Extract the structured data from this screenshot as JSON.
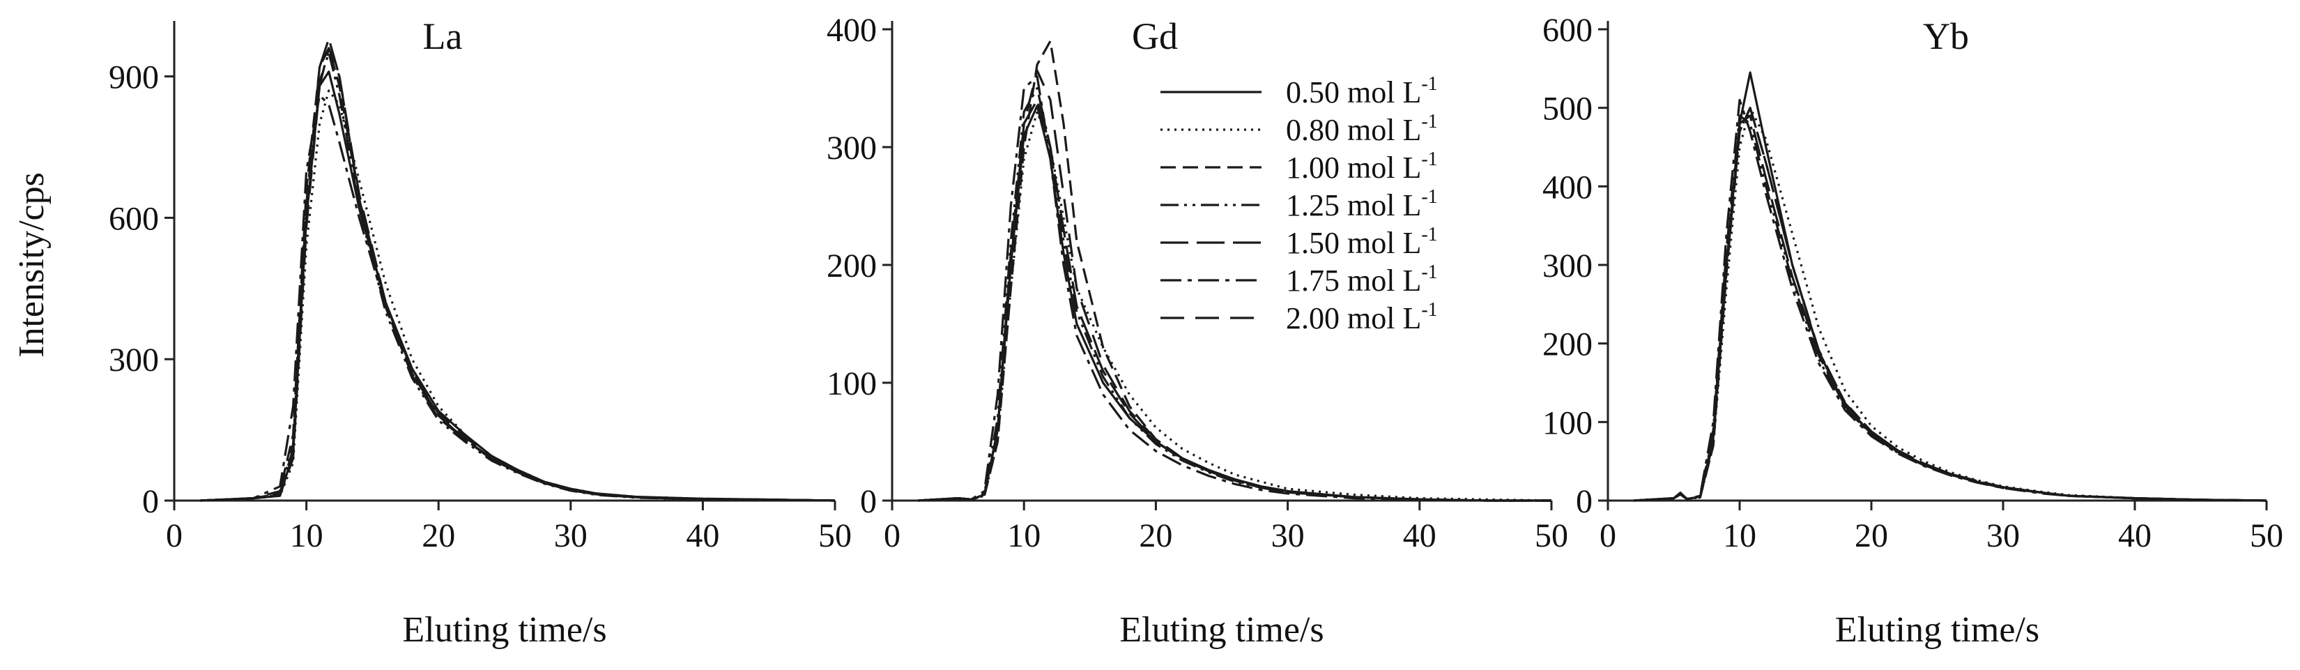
{
  "chart_data": [
    {
      "type": "line",
      "title": "La",
      "xlabel": "Eluting time/s",
      "ylabel": "Intensity/cps",
      "xlim": [
        0,
        50
      ],
      "ylim": [
        0,
        1000
      ],
      "xticks": [
        0,
        10,
        20,
        30,
        40,
        50
      ],
      "yticks": [
        0,
        300,
        600,
        900
      ],
      "x": [
        2,
        6,
        8,
        9,
        10,
        11,
        11.7,
        12.5,
        14,
        16,
        18,
        20,
        22,
        24,
        26,
        28,
        30,
        32,
        35,
        40,
        45,
        50
      ],
      "series": [
        {
          "name": "0.50 mol L-1",
          "values": [
            0,
            5,
            10,
            100,
            600,
            880,
            910,
            820,
            620,
            420,
            280,
            190,
            140,
            95,
            65,
            40,
            25,
            15,
            8,
            4,
            2,
            0
          ]
        },
        {
          "name": "0.80 mol L-1",
          "values": [
            0,
            5,
            10,
            80,
            540,
            800,
            870,
            840,
            680,
            460,
            300,
            200,
            140,
            95,
            65,
            40,
            25,
            15,
            8,
            4,
            2,
            0
          ]
        },
        {
          "name": "1.00 mol L-1",
          "values": [
            0,
            5,
            20,
            140,
            660,
            920,
            960,
            880,
            640,
            420,
            270,
            180,
            130,
            90,
            60,
            38,
            22,
            13,
            7,
            3,
            2,
            0
          ]
        },
        {
          "name": "1.25 mol L-1",
          "values": [
            0,
            5,
            15,
            120,
            620,
            890,
            950,
            860,
            620,
            400,
            260,
            170,
            125,
            85,
            58,
            36,
            21,
            12,
            6,
            3,
            1,
            0
          ]
        },
        {
          "name": "1.50 mol L-1",
          "values": [
            0,
            5,
            15,
            110,
            630,
            920,
            980,
            900,
            640,
            410,
            265,
            175,
            130,
            88,
            60,
            37,
            22,
            13,
            7,
            3,
            2,
            0
          ]
        },
        {
          "name": "1.75 mol L-1",
          "values": [
            0,
            5,
            30,
            200,
            700,
            860,
            840,
            760,
            600,
            410,
            270,
            180,
            130,
            90,
            60,
            38,
            22,
            13,
            7,
            3,
            2,
            0
          ]
        },
        {
          "name": "2.00 mol L-1",
          "values": [
            0,
            5,
            12,
            90,
            580,
            880,
            960,
            900,
            650,
            420,
            275,
            185,
            135,
            92,
            62,
            39,
            23,
            14,
            7,
            3,
            2,
            0
          ]
        }
      ]
    },
    {
      "type": "line",
      "title": "Gd",
      "xlabel": "Eluting time/s",
      "ylabel": "",
      "xlim": [
        0,
        50
      ],
      "ylim": [
        0,
        400
      ],
      "xticks": [
        0,
        10,
        20,
        30,
        40,
        50
      ],
      "yticks": [
        0,
        100,
        200,
        300,
        400
      ],
      "x": [
        2,
        5,
        6,
        7,
        8,
        9,
        10,
        11,
        12,
        13,
        14,
        16,
        18,
        20,
        22,
        24,
        26,
        28,
        30,
        35,
        40,
        45,
        50
      ],
      "series": [
        {
          "name": "0.50 mol L-1",
          "values": [
            0,
            2,
            1,
            5,
            60,
            200,
            310,
            335,
            290,
            210,
            150,
            100,
            70,
            50,
            36,
            26,
            18,
            12,
            8,
            3,
            1,
            0,
            0
          ]
        },
        {
          "name": "0.80 mol L-1",
          "values": [
            0,
            2,
            1,
            4,
            50,
            180,
            290,
            330,
            300,
            240,
            180,
            130,
            90,
            62,
            44,
            32,
            22,
            16,
            10,
            5,
            2,
            1,
            0
          ]
        },
        {
          "name": "1.00 mol L-1",
          "values": [
            0,
            2,
            1,
            4,
            50,
            180,
            300,
            370,
            390,
            320,
            220,
            130,
            80,
            52,
            36,
            25,
            17,
            11,
            7,
            3,
            1,
            0,
            0
          ]
        },
        {
          "name": "1.25 mol L-1",
          "values": [
            0,
            2,
            1,
            6,
            70,
            220,
            330,
            350,
            300,
            220,
            160,
            105,
            70,
            48,
            34,
            24,
            16,
            11,
            7,
            3,
            1,
            0,
            0
          ]
        },
        {
          "name": "1.50 mol L-1",
          "values": [
            0,
            2,
            1,
            5,
            60,
            210,
            320,
            340,
            300,
            230,
            165,
            110,
            74,
            50,
            35,
            25,
            17,
            11,
            7,
            3,
            1,
            0,
            0
          ]
        },
        {
          "name": "1.75 mol L-1",
          "values": [
            0,
            2,
            1,
            8,
            90,
            250,
            350,
            360,
            290,
            200,
            140,
            90,
            60,
            42,
            30,
            21,
            14,
            9,
            6,
            2,
            1,
            0,
            0
          ]
        },
        {
          "name": "2.00 mol L-1",
          "values": [
            0,
            2,
            1,
            5,
            60,
            200,
            320,
            365,
            340,
            260,
            180,
            115,
            76,
            52,
            36,
            26,
            18,
            12,
            8,
            3,
            1,
            0,
            0
          ]
        }
      ]
    },
    {
      "type": "line",
      "title": "Yb",
      "xlabel": "Eluting time/s",
      "ylabel": "",
      "xlim": [
        0,
        50
      ],
      "ylim": [
        0,
        600
      ],
      "xticks": [
        0,
        10,
        20,
        30,
        40,
        50
      ],
      "yticks": [
        0,
        100,
        200,
        300,
        400,
        500,
        600
      ],
      "x": [
        2,
        5,
        5.5,
        6,
        7,
        8,
        9,
        10,
        10.8,
        12,
        14,
        16,
        18,
        20,
        22,
        24,
        26,
        28,
        30,
        33,
        35,
        40,
        45,
        50
      ],
      "series": [
        {
          "name": "0.50 mol L-1",
          "values": [
            0,
            3,
            10,
            2,
            5,
            80,
            300,
            480,
            545,
            450,
            300,
            190,
            120,
            85,
            62,
            45,
            33,
            24,
            17,
            10,
            6,
            3,
            1,
            0
          ]
        },
        {
          "name": "0.80 mol L-1",
          "values": [
            0,
            3,
            8,
            2,
            4,
            70,
            270,
            450,
            500,
            460,
            340,
            220,
            140,
            95,
            68,
            50,
            36,
            26,
            18,
            11,
            7,
            3,
            1,
            0
          ]
        },
        {
          "name": "1.00 mol L-1",
          "values": [
            0,
            3,
            8,
            2,
            4,
            70,
            290,
            470,
            500,
            430,
            300,
            190,
            125,
            88,
            64,
            47,
            34,
            25,
            17,
            10,
            6,
            3,
            1,
            0
          ]
        },
        {
          "name": "1.25 mol L-1",
          "values": [
            0,
            3,
            8,
            2,
            5,
            90,
            320,
            490,
            480,
            400,
            280,
            180,
            118,
            84,
            61,
            45,
            33,
            24,
            16,
            10,
            6,
            3,
            1,
            0
          ]
        },
        {
          "name": "1.50 mol L-1",
          "values": [
            0,
            3,
            8,
            2,
            5,
            85,
            310,
            480,
            490,
            410,
            285,
            185,
            120,
            86,
            62,
            46,
            33,
            24,
            17,
            10,
            6,
            3,
            1,
            0
          ]
        },
        {
          "name": "1.75 mol L-1",
          "values": [
            0,
            3,
            9,
            2,
            6,
            100,
            340,
            510,
            470,
            390,
            270,
            175,
            115,
            82,
            60,
            44,
            32,
            23,
            16,
            9,
            6,
            3,
            1,
            0
          ]
        },
        {
          "name": "2.00 mol L-1",
          "values": [
            0,
            3,
            8,
            2,
            4,
            75,
            295,
            470,
            500,
            430,
            300,
            192,
            124,
            88,
            64,
            47,
            34,
            25,
            17,
            10,
            6,
            3,
            1,
            0
          ]
        }
      ]
    }
  ],
  "legend": {
    "location": "inside Gd panel, right",
    "entries": [
      {
        "name": "0.50 mol L",
        "superscript": "-1",
        "dash": "none"
      },
      {
        "name": "0.80 mol L",
        "superscript": "-1",
        "dash": "3 7"
      },
      {
        "name": "1.00 mol L",
        "superscript": "-1",
        "dash": "22 10"
      },
      {
        "name": "1.25 mol L",
        "superscript": "-1",
        "dash": "26 8 4 8 4 8"
      },
      {
        "name": "1.50 mol L",
        "superscript": "-1",
        "dash": "40 12"
      },
      {
        "name": "1.75 mol L",
        "superscript": "-1",
        "dash": "30 9 6 9"
      },
      {
        "name": "2.00 mol L",
        "superscript": "-1",
        "dash": "34 16"
      }
    ]
  }
}
